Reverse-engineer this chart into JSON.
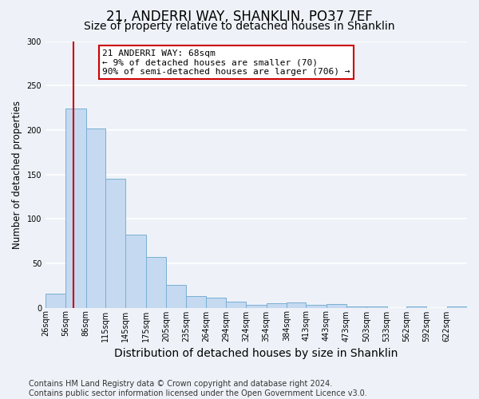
{
  "title": "21, ANDERRI WAY, SHANKLIN, PO37 7EF",
  "subtitle": "Size of property relative to detached houses in Shanklin",
  "xlabel": "Distribution of detached houses by size in Shanklin",
  "ylabel": "Number of detached properties",
  "bar_edges": [
    26,
    56,
    86,
    115,
    145,
    175,
    205,
    235,
    264,
    294,
    324,
    354,
    384,
    413,
    443,
    473,
    503,
    533,
    562,
    592,
    622
  ],
  "bar_heights": [
    16,
    224,
    202,
    145,
    82,
    57,
    26,
    13,
    11,
    7,
    3,
    5,
    6,
    3,
    4,
    1,
    1,
    0,
    1,
    0,
    1
  ],
  "bar_color": "#c5d9f0",
  "bar_edge_color": "#7aafd4",
  "bar_linewidth": 0.7,
  "vline_x": 68,
  "vline_color": "#cc0000",
  "vline_linewidth": 1.5,
  "annotation_line1": "21 ANDERRI WAY: 68sqm",
  "annotation_line2": "← 9% of detached houses are smaller (70)",
  "annotation_line3": "90% of semi-detached houses are larger (706) →",
  "annotation_box_color": "#cc0000",
  "annotation_box_bg": "#ffffff",
  "ylim": [
    0,
    300
  ],
  "yticks": [
    0,
    50,
    100,
    150,
    200,
    250,
    300
  ],
  "tick_labels": [
    "26sqm",
    "56sqm",
    "86sqm",
    "115sqm",
    "145sqm",
    "175sqm",
    "205sqm",
    "235sqm",
    "264sqm",
    "294sqm",
    "324sqm",
    "354sqm",
    "384sqm",
    "413sqm",
    "443sqm",
    "473sqm",
    "503sqm",
    "533sqm",
    "562sqm",
    "592sqm",
    "622sqm"
  ],
  "footer_text": "Contains HM Land Registry data © Crown copyright and database right 2024.\nContains public sector information licensed under the Open Government Licence v3.0.",
  "background_color": "#eef2f8",
  "plot_bg_color": "#eef2f8",
  "grid_color": "#ffffff",
  "title_fontsize": 12,
  "subtitle_fontsize": 10,
  "xlabel_fontsize": 10,
  "ylabel_fontsize": 8.5,
  "tick_fontsize": 7,
  "annotation_fontsize": 8,
  "footer_fontsize": 7
}
